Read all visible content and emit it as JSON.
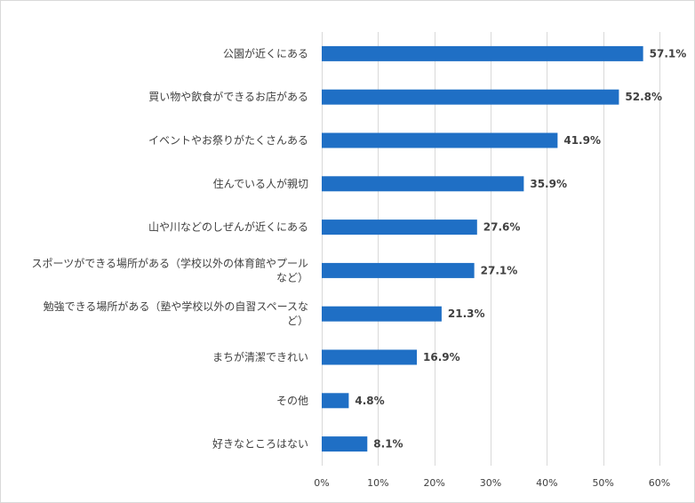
{
  "chart_data": {
    "type": "bar",
    "orientation": "horizontal",
    "categories": [
      [
        "公園が近くにある"
      ],
      [
        "買い物や飲食ができるお店がある"
      ],
      [
        "イベントやお祭りがたくさんある"
      ],
      [
        "住んでいる人が親切"
      ],
      [
        "山や川などのしぜんが近くにある"
      ],
      [
        "スポーツができる場所がある（学校以外の体育館やプール",
        "など）"
      ],
      [
        "勉強できる場所がある（塾や学校以外の自習スペースな",
        "ど）"
      ],
      [
        "まちが清潔できれい"
      ],
      [
        "その他"
      ],
      [
        "好きなところはない"
      ]
    ],
    "values": [
      57.1,
      52.8,
      41.9,
      35.9,
      27.6,
      27.1,
      21.3,
      16.9,
      4.8,
      8.1
    ],
    "value_labels": [
      "57.1%",
      "52.8%",
      "41.9%",
      "35.9%",
      "27.6%",
      "27.1%",
      "21.3%",
      "16.9%",
      "4.8%",
      "8.1%"
    ],
    "xlim": [
      0,
      60
    ],
    "xticks": [
      0,
      10,
      20,
      30,
      40,
      50,
      60
    ],
    "xtick_labels": [
      "0%",
      "10%",
      "20%",
      "30%",
      "40%",
      "50%",
      "60%"
    ],
    "bar_color": "#1f6fc5",
    "grid": "vertical",
    "title": "",
    "xlabel": "",
    "ylabel": ""
  }
}
